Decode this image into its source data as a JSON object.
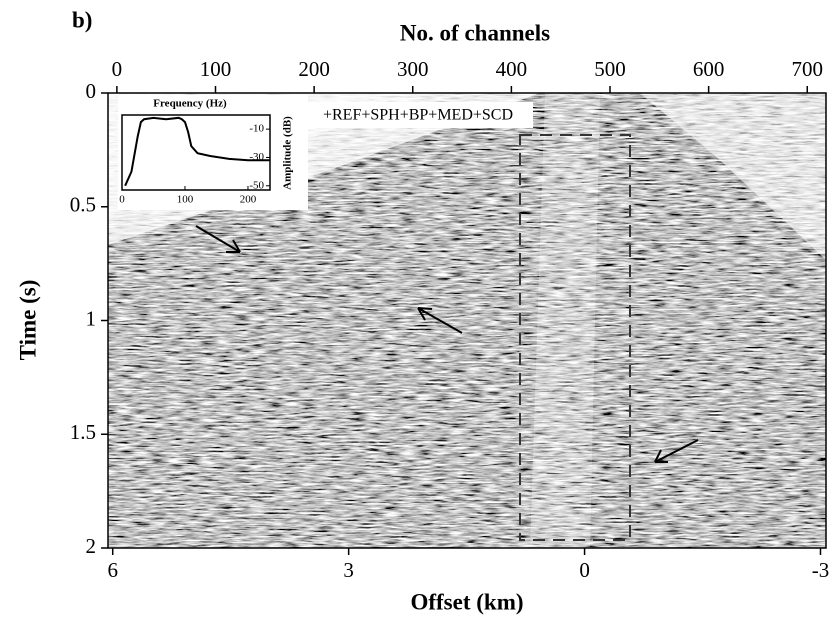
{
  "panel_label": "b)",
  "chart_data": {
    "type": "seismic",
    "annotation": "+REF+SPH+BP+MED+SCD",
    "x_label": "Offset (km)",
    "x2_label": "No. of channels",
    "y_label": "Time (s)",
    "xlim": [
      6.06,
      -3.07
    ],
    "xticks": [
      6,
      3,
      0,
      -3
    ],
    "x2lim": [
      -9,
      719
    ],
    "x2ticks": [
      0,
      100,
      200,
      300,
      400,
      500,
      600,
      700
    ],
    "ylim": [
      0,
      2
    ],
    "yticks": [
      0,
      0.5,
      1,
      1.5,
      2
    ],
    "inset": {
      "type": "line",
      "title": "Frequency (Hz)",
      "y_label": "Amplitude (dB)",
      "xlim": [
        0,
        235
      ],
      "xticks": [
        0,
        100,
        200
      ],
      "ylim": [
        -53,
        0
      ],
      "yticks": [
        -10,
        -30,
        -50
      ],
      "color": "#000000",
      "x": [
        5,
        15,
        25,
        30,
        35,
        50,
        70,
        90,
        95,
        100,
        105,
        110,
        120,
        140,
        170,
        200,
        235
      ],
      "values": [
        -50,
        -40,
        -15,
        -5,
        -3,
        -2,
        -3,
        -2,
        -3,
        -5,
        -12,
        -22,
        -27,
        -29,
        -31,
        -32,
        -32
      ]
    }
  }
}
